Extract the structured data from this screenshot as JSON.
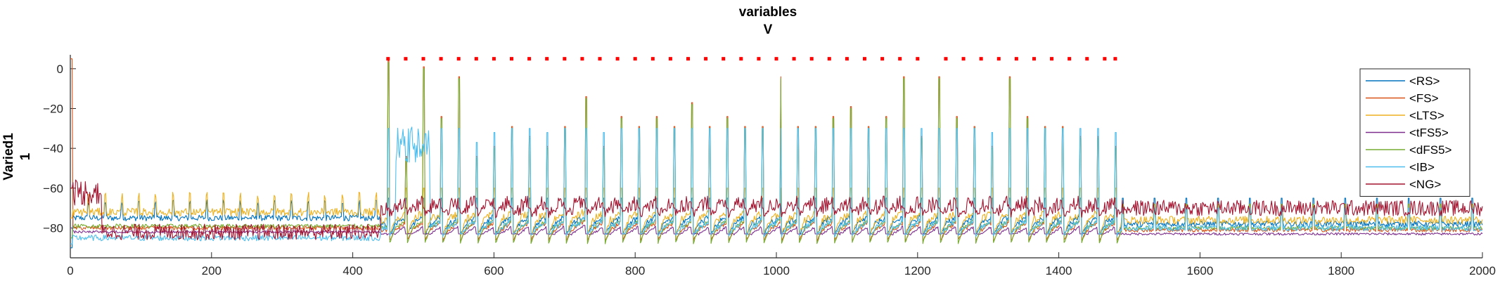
{
  "chart_data": {
    "type": "line",
    "title": "variables",
    "subtitle": "V",
    "ylabel": "Varied1",
    "ylabel2": "1",
    "xlabel": "",
    "xlim": [
      0,
      2000
    ],
    "ylim": [
      -95,
      7
    ],
    "xticks": [
      0,
      200,
      400,
      600,
      800,
      1000,
      1200,
      1400,
      1600,
      1800,
      2000
    ],
    "yticks": [
      0,
      -20,
      -40,
      -60,
      -80
    ],
    "grid": false,
    "legend_position": "top-right",
    "series": [
      {
        "name": "<RS>",
        "color": "#0072BD",
        "baseline": -78,
        "pre_baseline": -75,
        "noise": 1.5,
        "spike_peak": -65,
        "spike_depth": -85,
        "first_spike_peak": -90,
        "post_peak": -65
      },
      {
        "name": "<FS>",
        "color": "#D95319",
        "baseline": -81,
        "pre_baseline": -80,
        "noise": 1.0,
        "spike_peak": 2,
        "spike_depth": -88,
        "first_spike_peak": 5,
        "post_peak": -70
      },
      {
        "name": "<LTS>",
        "color": "#EDB120",
        "baseline": -76,
        "pre_baseline": -72,
        "noise": 2.0,
        "spike_peak": -60,
        "spike_depth": -86,
        "first_spike_peak": -75,
        "post_peak": -68
      },
      {
        "name": "<tFS5>",
        "color": "#7E2F8E",
        "baseline": -83,
        "pre_baseline": -82,
        "noise": 0.6,
        "spike_peak": -83,
        "spike_depth": -83,
        "first_spike_peak": -80,
        "post_peak": -80
      },
      {
        "name": "<dFS5>",
        "color": "#77AC30",
        "baseline": -80,
        "pre_baseline": -79,
        "noise": 1.0,
        "spike_peak": 0,
        "spike_depth": -90,
        "first_spike_peak": -85,
        "post_peak": -68
      },
      {
        "name": "<IB>",
        "color": "#4DBEEE",
        "baseline": -80,
        "pre_baseline": -85,
        "noise": 1.5,
        "spike_peak": -30,
        "spike_depth": -85,
        "first_spike_peak": -88,
        "post_peak": -70
      },
      {
        "name": "<NG>",
        "color": "#A2142F",
        "baseline": -70,
        "pre_baseline": -82,
        "noise": 4.0,
        "spike_peak": -70,
        "spike_depth": -74,
        "first_spike_peak": -60,
        "post_peak": -76
      }
    ],
    "spike_times": [
      450,
      475,
      500,
      525,
      550,
      575,
      600,
      625,
      650,
      675,
      700,
      730,
      755,
      780,
      805,
      830,
      855,
      880,
      905,
      930,
      955,
      980,
      1005,
      1030,
      1055,
      1080,
      1105,
      1130,
      1155,
      1180,
      1205,
      1230,
      1255,
      1280,
      1305,
      1330,
      1355,
      1380,
      1405,
      1430,
      1455,
      1480
    ],
    "spike_peaks_green": [
      3,
      -45,
      0,
      -25,
      -5,
      -45,
      -40,
      -30,
      -35,
      -40,
      -30,
      -15,
      -40,
      -25,
      -30,
      -25,
      -30,
      -18,
      -30,
      -25,
      -30,
      -30,
      -5,
      -30,
      -30,
      -25,
      -20,
      -30,
      -25,
      -5,
      -35,
      -5,
      -25,
      -30,
      -40,
      -5,
      -25,
      -30,
      -30,
      -35,
      -35,
      -40
    ],
    "event_markers": {
      "y": 5,
      "color": "#FF0000",
      "x": [
        450,
        475,
        500,
        525,
        550,
        575,
        600,
        625,
        650,
        675,
        700,
        725,
        750,
        775,
        800,
        825,
        850,
        875,
        900,
        925,
        950,
        975,
        1000,
        1025,
        1050,
        1075,
        1100,
        1125,
        1150,
        1175,
        1200,
        1240,
        1265,
        1290,
        1315,
        1340,
        1365,
        1390,
        1415,
        1440,
        1465,
        1480
      ]
    }
  }
}
